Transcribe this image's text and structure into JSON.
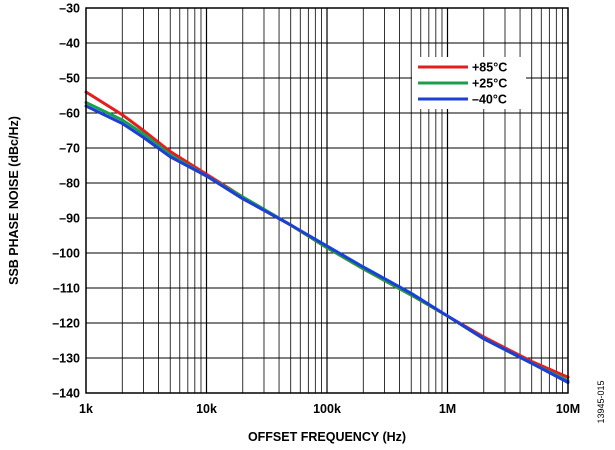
{
  "chart_data": {
    "type": "line",
    "title": "",
    "xlabel": "OFFSET FREQUENCY (Hz)",
    "ylabel": "SSB PHASE NOISE (dBc/Hz)",
    "x_scale": "log",
    "xlim": [
      1000,
      10000000
    ],
    "ylim": [
      -140,
      -30
    ],
    "x_ticks": [
      {
        "value": 1000,
        "label": "1k"
      },
      {
        "value": 10000,
        "label": "10k"
      },
      {
        "value": 100000,
        "label": "100k"
      },
      {
        "value": 1000000,
        "label": "1M"
      },
      {
        "value": 10000000,
        "label": "10M"
      }
    ],
    "y_ticks": [
      {
        "value": -30,
        "label": "–30"
      },
      {
        "value": -40,
        "label": "–40"
      },
      {
        "value": -50,
        "label": "–50"
      },
      {
        "value": -60,
        "label": "–60"
      },
      {
        "value": -70,
        "label": "–70"
      },
      {
        "value": -80,
        "label": "–80"
      },
      {
        "value": -90,
        "label": "–90"
      },
      {
        "value": -100,
        "label": "–100"
      },
      {
        "value": -110,
        "label": "–110"
      },
      {
        "value": -120,
        "label": "–120"
      },
      {
        "value": -130,
        "label": "–130"
      },
      {
        "value": -140,
        "label": "–140"
      }
    ],
    "grid": true,
    "legend_position": "top-right",
    "series": [
      {
        "name": "+85°C",
        "color": "#e02020",
        "x": [
          1000,
          2000,
          3000,
          5000,
          10000,
          20000,
          50000,
          100000,
          200000,
          500000,
          1000000,
          2000000,
          5000000,
          10000000
        ],
        "y": [
          -54,
          -60.5,
          -65,
          -71,
          -77.5,
          -84,
          -92,
          -98.5,
          -104.5,
          -112,
          -118,
          -124,
          -131,
          -135.5
        ]
      },
      {
        "name": "+25°C",
        "color": "#1aa04a",
        "x": [
          1000,
          2000,
          3000,
          5000,
          10000,
          20000,
          50000,
          100000,
          200000,
          500000,
          1000000,
          2000000,
          5000000,
          10000000
        ],
        "y": [
          -57,
          -62,
          -66,
          -72,
          -78,
          -84,
          -92,
          -98.5,
          -104.5,
          -112,
          -118,
          -124.5,
          -131.5,
          -136.5
        ]
      },
      {
        "name": "–40°C",
        "color": "#1c3fd6",
        "x": [
          1000,
          2000,
          3000,
          5000,
          10000,
          20000,
          50000,
          100000,
          200000,
          500000,
          1000000,
          2000000,
          5000000,
          10000000
        ],
        "y": [
          -58,
          -63,
          -67,
          -72.5,
          -78,
          -84.5,
          -92,
          -98,
          -104,
          -111.5,
          -118,
          -124.5,
          -131.5,
          -137
        ]
      }
    ]
  },
  "figure_id": "13945-015"
}
